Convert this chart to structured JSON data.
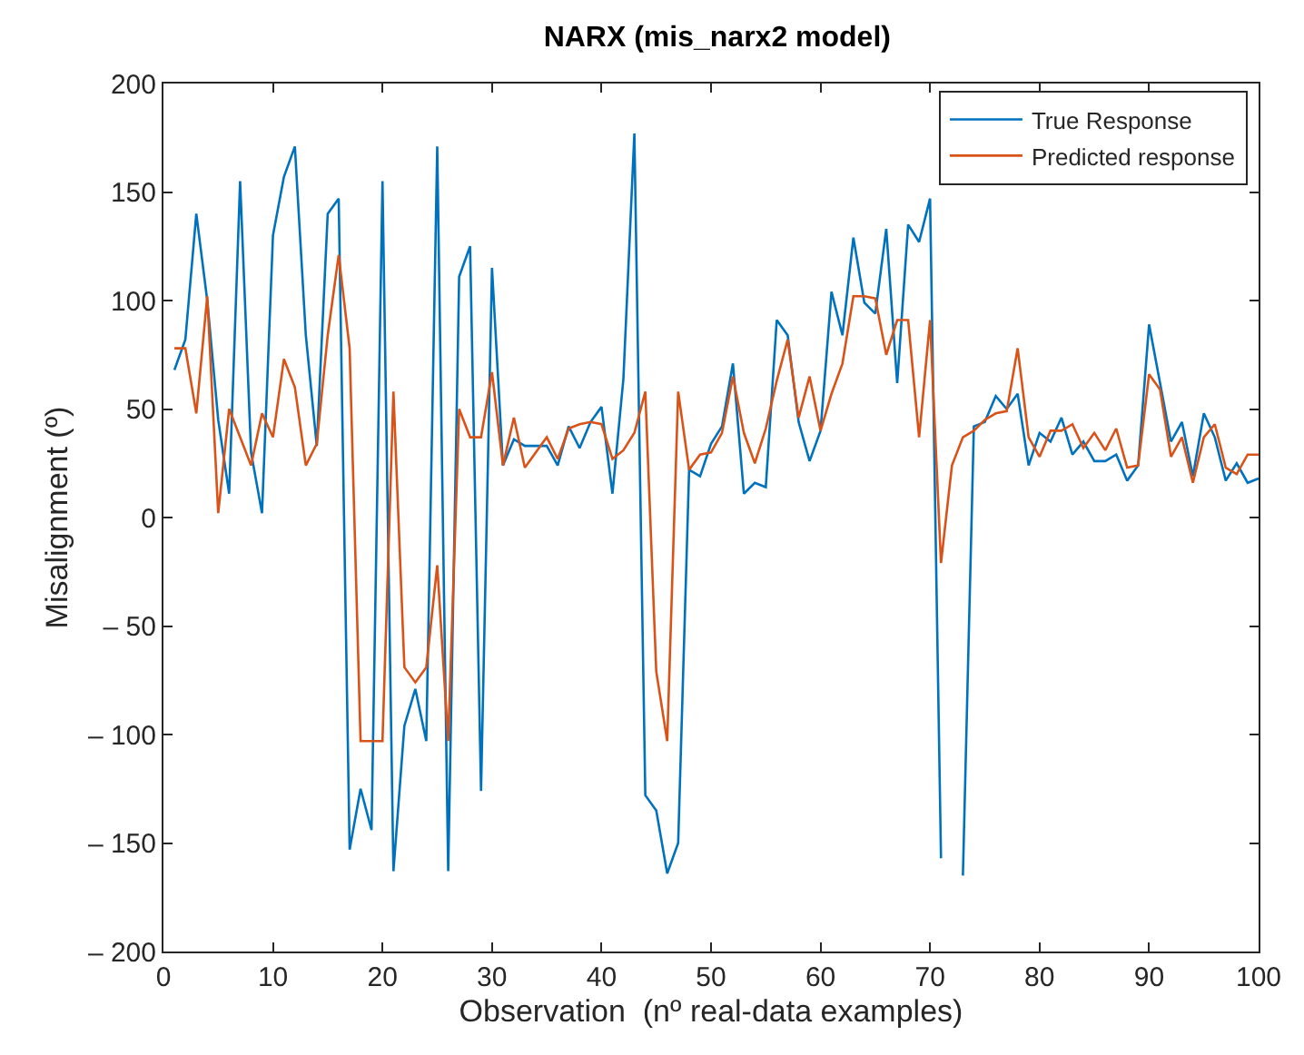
{
  "chart_data": {
    "type": "line",
    "title": "NARX (mis_narx2 model)",
    "xlabel": "Observation  (nº real-data examples)",
    "ylabel": "Misalignment (º)",
    "x": [
      1,
      2,
      3,
      4,
      5,
      6,
      7,
      8,
      9,
      10,
      11,
      12,
      13,
      14,
      15,
      16,
      17,
      18,
      19,
      20,
      21,
      22,
      23,
      24,
      25,
      26,
      27,
      28,
      29,
      30,
      31,
      32,
      33,
      34,
      35,
      36,
      37,
      38,
      39,
      40,
      41,
      42,
      43,
      44,
      45,
      46,
      47,
      48,
      49,
      50,
      51,
      52,
      53,
      54,
      55,
      56,
      57,
      58,
      59,
      60,
      61,
      62,
      63,
      64,
      65,
      66,
      67,
      68,
      69,
      70,
      71,
      72,
      73,
      74,
      75,
      76,
      77,
      78,
      79,
      80,
      81,
      82,
      83,
      84,
      85,
      86,
      87,
      88,
      89,
      90,
      91,
      92,
      93,
      94,
      95,
      96,
      97,
      98,
      99,
      100
    ],
    "series": [
      {
        "name": "True Response",
        "color": "#0072bd",
        "values": [
          68,
          82,
          140,
          100,
          45,
          11,
          155,
          30,
          2,
          130,
          157,
          171,
          84,
          33,
          140,
          147,
          -153,
          -125,
          -144,
          155,
          -163,
          -96,
          -79,
          -103,
          171,
          -163,
          111,
          125,
          -126,
          115,
          24,
          36,
          33,
          33,
          33,
          24,
          42,
          32,
          44,
          51,
          11,
          64,
          177,
          -128,
          -135,
          -164,
          -150,
          22,
          19,
          34,
          42,
          71,
          11,
          16,
          14,
          91,
          84,
          44,
          26,
          40,
          104,
          84,
          129,
          99,
          94,
          133,
          62,
          135,
          127,
          147,
          -157,
          null,
          -165,
          42,
          44,
          56,
          50,
          57,
          24,
          39,
          35,
          46,
          29,
          35,
          26,
          26,
          29,
          17,
          24,
          89,
          62,
          35,
          44,
          19,
          48,
          37,
          17,
          25,
          16,
          18
        ]
      },
      {
        "name": "Predicted response",
        "color": "#d95319",
        "values": [
          78,
          78,
          48,
          102,
          2,
          50,
          37,
          24,
          48,
          37,
          73,
          60,
          24,
          34,
          84,
          121,
          78,
          -103,
          -103,
          -103,
          58,
          -69,
          -76,
          -69,
          -22,
          -103,
          50,
          37,
          37,
          67,
          24,
          46,
          23,
          30,
          37,
          27,
          41,
          43,
          44,
          43,
          27,
          31,
          39,
          58,
          -71,
          -103,
          58,
          22,
          29,
          30,
          39,
          65,
          39,
          25,
          41,
          63,
          82,
          46,
          65,
          40,
          57,
          71,
          102,
          102,
          101,
          75,
          91,
          91,
          37,
          91,
          -21,
          24,
          37,
          40,
          45,
          48,
          49,
          78,
          37,
          28,
          40,
          40,
          43,
          32,
          39,
          31,
          41,
          23,
          24,
          66,
          59,
          28,
          37,
          16,
          37,
          43,
          23,
          20,
          29,
          29
        ]
      }
    ],
    "xlim": [
      0,
      100
    ],
    "xticks": [
      0,
      10,
      20,
      30,
      40,
      50,
      60,
      70,
      80,
      90,
      100
    ],
    "ylim": [
      -200,
      200
    ],
    "yticks": [
      {
        "value": -200,
        "label": "– 200"
      },
      {
        "value": -150,
        "label": "– 150"
      },
      {
        "value": -100,
        "label": "– 100"
      },
      {
        "value": -50,
        "label": "– 50"
      },
      0,
      50,
      100,
      150,
      200
    ],
    "legend": "top right",
    "line_style": "solid",
    "marker": "none"
  }
}
